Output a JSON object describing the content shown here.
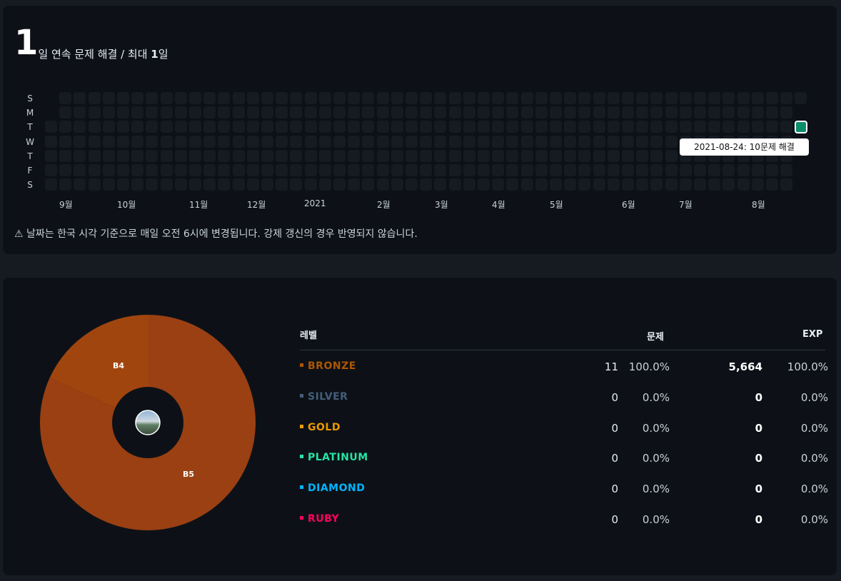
{
  "streak": {
    "current": "1",
    "title_suffix": "일 연속 문제 해결 / 최대 ",
    "max": "1",
    "max_unit": "일",
    "day_labels": [
      "S",
      "M",
      "T",
      "W",
      "T",
      "F",
      "S"
    ],
    "months": [
      "9월",
      "10월",
      "11월",
      "12월",
      "2021",
      "2월",
      "3월",
      "4월",
      "5월",
      "6월",
      "7월",
      "8월"
    ],
    "tooltip": "2021-08-24: 10문제 해결",
    "notice": "⚠ 날짜는 한국 시각 기준으로 매일 오전 6시에 변경됩니다. 강제 갱신의 경우 반영되지 않습니다.",
    "colors": {
      "empty": "#161b22",
      "active": "#0b8f6b"
    }
  },
  "chart_data": {
    "type": "pie",
    "labels": [
      "B5",
      "B4"
    ],
    "values": [
      9,
      2
    ],
    "colors": [
      "#9a4012",
      "#a1450f"
    ],
    "center_icon": "profile-avatar"
  },
  "table": {
    "headers": {
      "level": "레벨",
      "problems": "문제",
      "exp": "EXP"
    },
    "rows": [
      {
        "tier": "BRONZE",
        "color": "#ad5600",
        "count": "11",
        "pct": "100.0%",
        "exp": "5,664",
        "exp_pct": "100.0%"
      },
      {
        "tier": "SILVER",
        "color": "#435f7a",
        "count": "0",
        "pct": "0.0%",
        "exp": "0",
        "exp_pct": "0.0%"
      },
      {
        "tier": "GOLD",
        "color": "#ec9a00",
        "count": "0",
        "pct": "0.0%",
        "exp": "0",
        "exp_pct": "0.0%"
      },
      {
        "tier": "PLATINUM",
        "color": "#27e2a4",
        "count": "0",
        "pct": "0.0%",
        "exp": "0",
        "exp_pct": "0.0%"
      },
      {
        "tier": "DIAMOND",
        "color": "#00b4fc",
        "count": "0",
        "pct": "0.0%",
        "exp": "0",
        "exp_pct": "0.0%"
      },
      {
        "tier": "RUBY",
        "color": "#ff0062",
        "count": "0",
        "pct": "0.0%",
        "exp": "0",
        "exp_pct": "0.0%"
      }
    ]
  }
}
